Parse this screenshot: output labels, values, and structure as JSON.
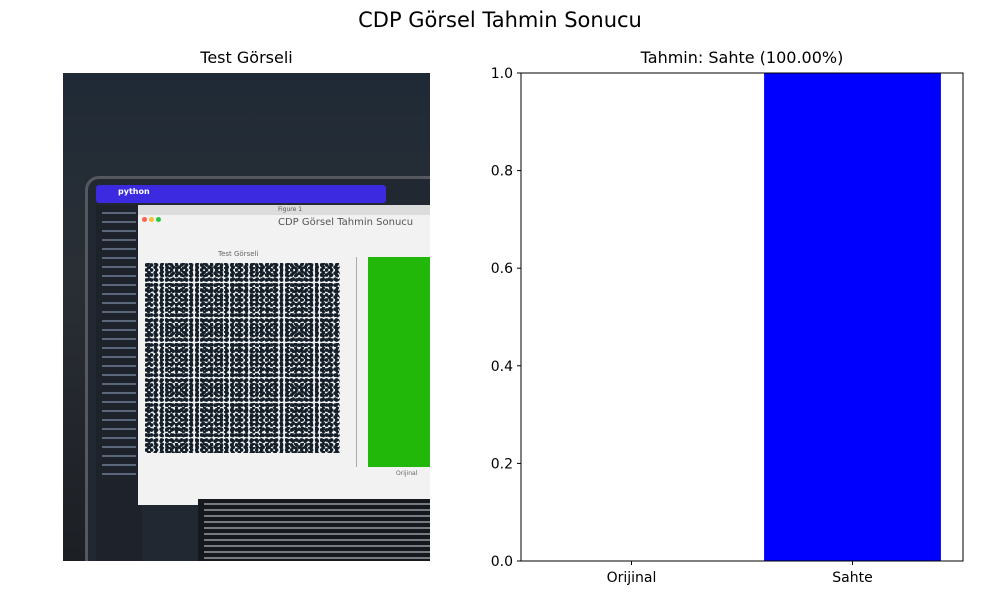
{
  "figure": {
    "suptitle": "CDP Görsel Tahmin Sonucu",
    "image_panel_title": "Test Görseli"
  },
  "photo": {
    "window_app_label": "python",
    "figure_window_label": "Figure 1",
    "inner_title": "CDP Görsel Tahmin Sonucu",
    "inner_subtitle": "Test Görseli",
    "inner_bar_label": "Orijinal"
  },
  "chart_data": {
    "type": "bar",
    "title": "Tahmin: Sahte (100.00%)",
    "categories": [
      "Orijinal",
      "Sahte"
    ],
    "values": [
      0.0,
      1.0
    ],
    "colors": [
      "#00a000",
      "#0000ff"
    ],
    "ylim": [
      0.0,
      1.0
    ],
    "yticks": [
      "0.0",
      "0.2",
      "0.4",
      "0.6",
      "0.8",
      "1.0"
    ],
    "grid": false,
    "xlabel": "",
    "ylabel": ""
  }
}
